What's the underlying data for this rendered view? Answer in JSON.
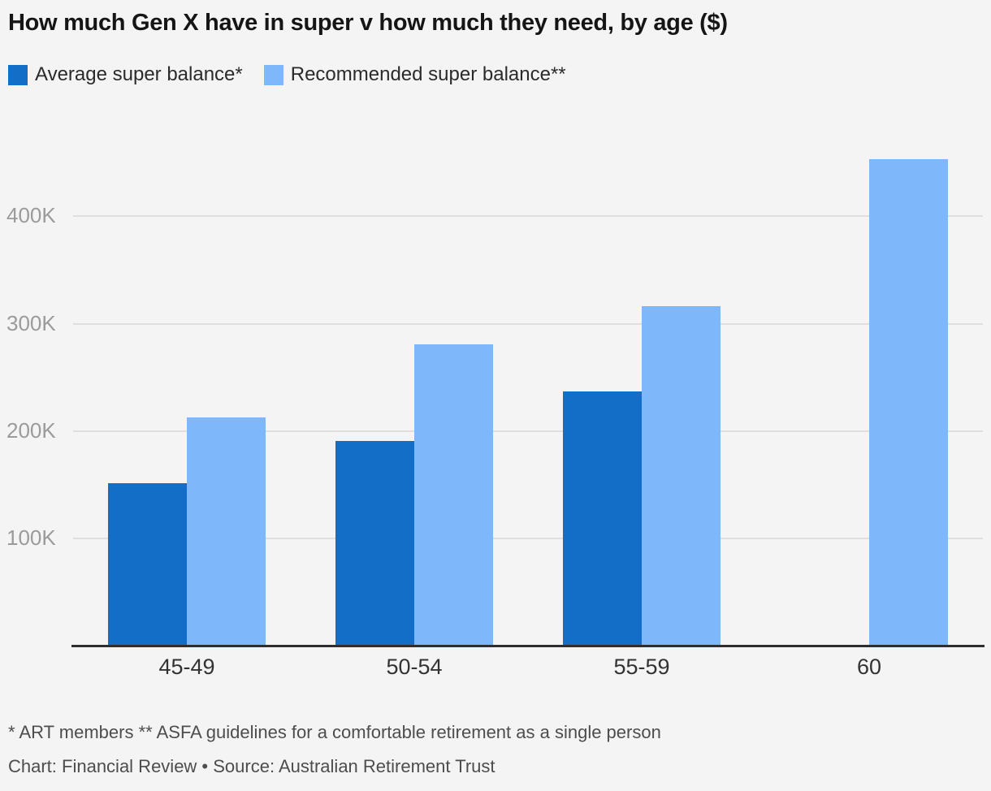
{
  "title": "How much Gen X have in super v how much they need, by age ($)",
  "legend": {
    "items": [
      {
        "label": "Average super balance*",
        "color": "#136ec7"
      },
      {
        "label": "Recommended super balance**",
        "color": "#7fb8fa"
      }
    ]
  },
  "footnote": "* ART members ** ASFA guidelines for a comfortable retirement as a single person",
  "credit": "Chart: Financial Review • Source: Australian Retirement Trust",
  "colors": {
    "background": "#f4f4f4",
    "gridline": "#dfdfdf",
    "axis_line": "#2e2e2e",
    "ytick_text": "#9b9b9b",
    "xtick_text": "#333333"
  },
  "chart_data": {
    "type": "bar",
    "title": "How much Gen X have in super v how much they need, by age ($)",
    "xlabel": "",
    "ylabel": "",
    "categories": [
      "45-49",
      "50-54",
      "55-59",
      "60"
    ],
    "series": [
      {
        "name": "Average super balance*",
        "color": "#136ec7",
        "values": [
          151000,
          191000,
          237000,
          null
        ]
      },
      {
        "name": "Recommended super balance**",
        "color": "#7fb8fa",
        "values": [
          213000,
          281000,
          316000,
          453000
        ]
      }
    ],
    "yticks": [
      100000,
      200000,
      300000,
      400000
    ],
    "ytick_labels": [
      "100K",
      "200K",
      "300K",
      "400K"
    ],
    "ylim": [
      0,
      490000
    ],
    "grid": true,
    "legend_position": "top-left"
  }
}
